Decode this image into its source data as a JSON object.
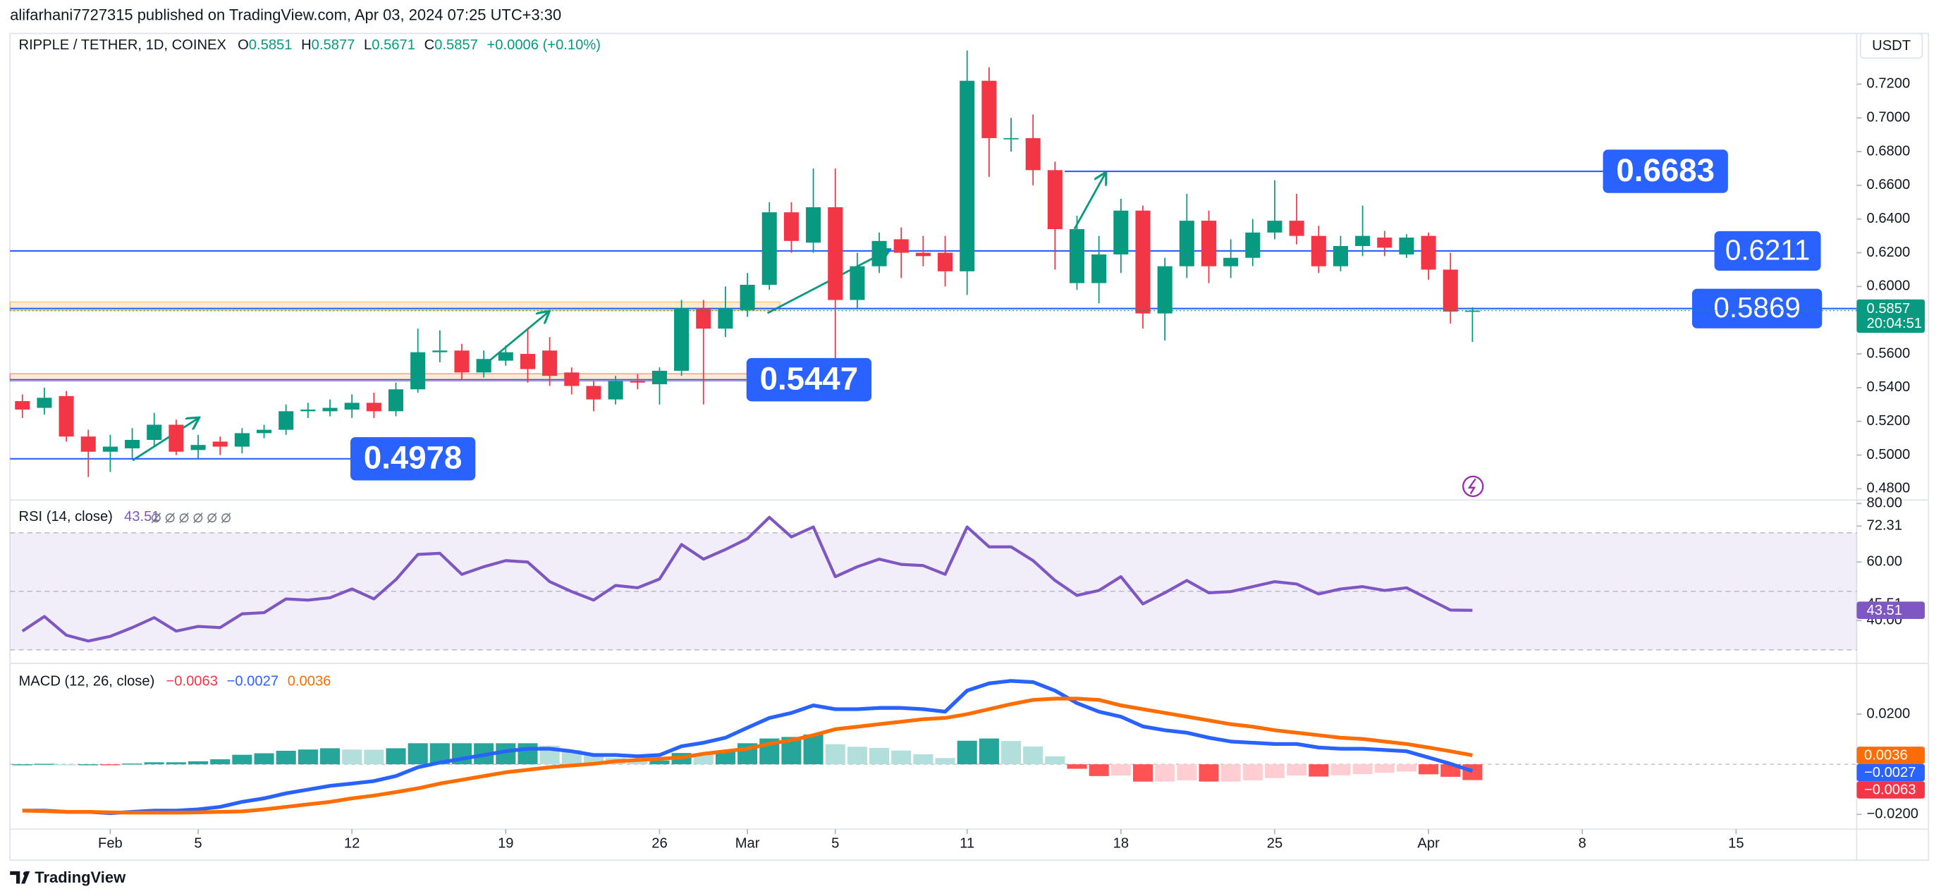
{
  "header": {
    "publisher": "alifarhani7727315 published on TradingView.com, Apr 03, 2024 07:25 UTC+3:30",
    "footer": "TradingView"
  },
  "chart_data": [
    {
      "type": "candlestick",
      "title": "RIPPLE / TETHER, 1D, COINEX",
      "legend_letters": [
        "O",
        "H",
        "L",
        "C"
      ],
      "change": "+0.0006 (+0.10%)",
      "currency": "USDT",
      "countdown": "20:04:51",
      "x": [
        "2024-01-28",
        "2024-01-29",
        "2024-01-30",
        "2024-01-31",
        "2024-02-01",
        "2024-02-02",
        "2024-02-03",
        "2024-02-04",
        "2024-02-05",
        "2024-02-06",
        "2024-02-07",
        "2024-02-08",
        "2024-02-09",
        "2024-02-10",
        "2024-02-11",
        "2024-02-12",
        "2024-02-13",
        "2024-02-14",
        "2024-02-15",
        "2024-02-16",
        "2024-02-17",
        "2024-02-18",
        "2024-02-19",
        "2024-02-20",
        "2024-02-21",
        "2024-02-22",
        "2024-02-23",
        "2024-02-24",
        "2024-02-25",
        "2024-02-26",
        "2024-02-27",
        "2024-02-28",
        "2024-02-29",
        "2024-03-01",
        "2024-03-02",
        "2024-03-03",
        "2024-03-04",
        "2024-03-05",
        "2024-03-06",
        "2024-03-07",
        "2024-03-08",
        "2024-03-09",
        "2024-03-10",
        "2024-03-11",
        "2024-03-12",
        "2024-03-13",
        "2024-03-14",
        "2024-03-15",
        "2024-03-16",
        "2024-03-17",
        "2024-03-18",
        "2024-03-19",
        "2024-03-20",
        "2024-03-21",
        "2024-03-22",
        "2024-03-23",
        "2024-03-24",
        "2024-03-25",
        "2024-03-26",
        "2024-03-27",
        "2024-03-28",
        "2024-03-29",
        "2024-03-30",
        "2024-03-31",
        "2024-04-01",
        "2024-04-02",
        "2024-04-03"
      ],
      "open": [
        0.532,
        0.528,
        0.535,
        0.511,
        0.502,
        0.504,
        0.509,
        0.518,
        0.503,
        0.508,
        0.505,
        0.513,
        0.515,
        0.526,
        0.526,
        0.527,
        0.531,
        0.526,
        0.539,
        0.561,
        0.562,
        0.549,
        0.556,
        0.56,
        0.562,
        0.549,
        0.541,
        0.533,
        0.544,
        0.542,
        0.55,
        0.587,
        0.575,
        0.586,
        0.601,
        0.644,
        0.626,
        0.647,
        0.592,
        0.612,
        0.628,
        0.62,
        0.62,
        0.609,
        0.722,
        0.688,
        0.688,
        0.669,
        0.602,
        0.602,
        0.619,
        0.645,
        0.584,
        0.612,
        0.639,
        0.612,
        0.617,
        0.632,
        0.639,
        0.63,
        0.612,
        0.624,
        0.629,
        0.619,
        0.63,
        0.61,
        0.5851
      ],
      "high": [
        0.536,
        0.54,
        0.538,
        0.515,
        0.512,
        0.516,
        0.525,
        0.521,
        0.512,
        0.511,
        0.516,
        0.518,
        0.53,
        0.531,
        0.533,
        0.536,
        0.537,
        0.543,
        0.575,
        0.574,
        0.566,
        0.562,
        0.565,
        0.575,
        0.57,
        0.552,
        0.544,
        0.547,
        0.548,
        0.552,
        0.592,
        0.592,
        0.6,
        0.608,
        0.65,
        0.65,
        0.67,
        0.67,
        0.62,
        0.632,
        0.635,
        0.63,
        0.63,
        0.74,
        0.73,
        0.7,
        0.702,
        0.674,
        0.642,
        0.63,
        0.652,
        0.648,
        0.617,
        0.655,
        0.645,
        0.628,
        0.64,
        0.663,
        0.655,
        0.636,
        0.63,
        0.648,
        0.633,
        0.631,
        0.632,
        0.62,
        0.5877
      ],
      "low": [
        0.522,
        0.524,
        0.508,
        0.487,
        0.49,
        0.498,
        0.505,
        0.5,
        0.498,
        0.5,
        0.501,
        0.51,
        0.512,
        0.522,
        0.523,
        0.522,
        0.522,
        0.523,
        0.537,
        0.555,
        0.545,
        0.546,
        0.553,
        0.543,
        0.541,
        0.536,
        0.526,
        0.53,
        0.539,
        0.53,
        0.547,
        0.53,
        0.57,
        0.582,
        0.598,
        0.62,
        0.62,
        0.54,
        0.587,
        0.608,
        0.605,
        0.612,
        0.6,
        0.595,
        0.665,
        0.68,
        0.66,
        0.61,
        0.598,
        0.59,
        0.608,
        0.575,
        0.568,
        0.605,
        0.602,
        0.605,
        0.612,
        0.628,
        0.625,
        0.608,
        0.609,
        0.618,
        0.618,
        0.617,
        0.604,
        0.578,
        0.5671
      ],
      "close": [
        0.527,
        0.534,
        0.511,
        0.502,
        0.505,
        0.509,
        0.518,
        0.502,
        0.506,
        0.505,
        0.513,
        0.515,
        0.526,
        0.527,
        0.528,
        0.531,
        0.526,
        0.539,
        0.561,
        0.562,
        0.549,
        0.557,
        0.561,
        0.551,
        0.547,
        0.541,
        0.533,
        0.544,
        0.543,
        0.55,
        0.587,
        0.575,
        0.587,
        0.601,
        0.644,
        0.627,
        0.647,
        0.592,
        0.612,
        0.627,
        0.62,
        0.618,
        0.609,
        0.722,
        0.688,
        0.688,
        0.669,
        0.634,
        0.634,
        0.619,
        0.645,
        0.584,
        0.612,
        0.639,
        0.612,
        0.617,
        0.632,
        0.639,
        0.63,
        0.612,
        0.624,
        0.63,
        0.623,
        0.629,
        0.61,
        0.5851,
        0.5857
      ],
      "up_color": "#089981",
      "down_color": "#f23645",
      "xlim": [
        "2024-01-27T10:29Z",
        "2024-04-20T11:46Z"
      ],
      "xticks": [
        {
          "value": "2024-02-01",
          "label": "Feb"
        },
        {
          "value": "2024-02-05",
          "label": "5"
        },
        {
          "value": "2024-02-12",
          "label": "12"
        },
        {
          "value": "2024-02-19",
          "label": "19"
        },
        {
          "value": "2024-02-26",
          "label": "26"
        },
        {
          "value": "2024-03-01",
          "label": "Mar"
        },
        {
          "value": "2024-03-05",
          "label": "5"
        },
        {
          "value": "2024-03-11",
          "label": "11"
        },
        {
          "value": "2024-03-18",
          "label": "18"
        },
        {
          "value": "2024-03-25",
          "label": "25"
        },
        {
          "value": "2024-04-01",
          "label": "Apr"
        },
        {
          "value": "2024-04-08",
          "label": "8"
        },
        {
          "value": "2024-04-15",
          "label": "15"
        }
      ],
      "ylim": [
        0.4741,
        0.7501
      ],
      "yticks": [
        {
          "value": 0.48,
          "label": "0.4800"
        },
        {
          "value": 0.5,
          "label": "0.5000"
        },
        {
          "value": 0.52,
          "label": "0.5200"
        },
        {
          "value": 0.54,
          "label": "0.5400"
        },
        {
          "value": 0.56,
          "label": "0.5600"
        },
        {
          "value": 0.58,
          "label": "0.5800"
        },
        {
          "value": 0.6,
          "label": "0.6000"
        },
        {
          "value": 0.62,
          "label": "0.6200"
        },
        {
          "value": 0.64,
          "label": "0.6400"
        },
        {
          "value": 0.66,
          "label": "0.6600"
        },
        {
          "value": 0.68,
          "label": "0.6800"
        },
        {
          "value": 0.7,
          "label": "0.7000"
        },
        {
          "value": 0.72,
          "label": "0.7200"
        }
      ],
      "levels": [
        0.4978,
        0.5447,
        0.5869,
        0.6211,
        0.6683
      ],
      "level_color": "#2962ff"
    },
    {
      "type": "line",
      "title": "RSI (14, close)",
      "color": "#7e57c2",
      "values": [
        36.4,
        41.4,
        35,
        33,
        34.6,
        37.6,
        41,
        36.4,
        38,
        37.6,
        42.3,
        42.7,
        47.4,
        47,
        47.8,
        50.8,
        47.4,
        54,
        62.6,
        63,
        55.8,
        58.4,
        60.5,
        60,
        53.3,
        49.9,
        47,
        52,
        51.2,
        54.2,
        66,
        61,
        64.3,
        68,
        75.3,
        68.6,
        72,
        55,
        58.4,
        61,
        59.2,
        58.8,
        55.8,
        72,
        65.2,
        65.2,
        60.5,
        53.7,
        48.6,
        50.3,
        55,
        45.7,
        49.5,
        53.7,
        49.5,
        49.9,
        51.6,
        53.3,
        52.5,
        49.1,
        50.8,
        51.6,
        50.3,
        51.2,
        47.4,
        43.6,
        43.51
      ],
      "ylim": [
        25.8,
        80.8
      ],
      "yticks": [
        {
          "value": 80,
          "label": "80.00"
        },
        72.31,
        {
          "value": 60,
          "label": "60.00"
        },
        45.51,
        {
          "value": 40,
          "label": "40.00"
        }
      ],
      "band": [
        30,
        70
      ],
      "midline": 50
    },
    {
      "type": "macd",
      "title": "MACD (12, 26, close)",
      "ylim": [
        -0.0259,
        0.0398
      ],
      "yticks": [
        {
          "value": 0.02,
          "label": "0.0200"
        },
        {
          "value": -0.02,
          "label": "−0.0200"
        }
      ],
      "histogram": {
        "colors": [
          "#26a69a",
          "#b2dfdb",
          "#ff5252",
          "#ffcdd2"
        ],
        "label_color": "#f23645",
        "last_label": "−0.0063",
        "values": [
          0.0,
          0.0002,
          0.0,
          0.0,
          -0.0003,
          0.0003,
          0.0008,
          0.0008,
          0.0012,
          0.002,
          0.0038,
          0.0044,
          0.0054,
          0.0059,
          0.0064,
          0.0059,
          0.0058,
          0.0064,
          0.0084,
          0.0084,
          0.0084,
          0.0084,
          0.0084,
          0.0084,
          0.0074,
          0.0057,
          0.0035,
          0.0025,
          0.0015,
          0.0015,
          0.0045,
          0.0044,
          0.0054,
          0.0084,
          0.0103,
          0.0109,
          0.0119,
          0.008,
          0.007,
          0.0065,
          0.0055,
          0.004,
          0.0025,
          0.0094,
          0.0103,
          0.0093,
          0.0071,
          0.0032,
          -0.0018,
          -0.0047,
          -0.0045,
          -0.0069,
          -0.0069,
          -0.0064,
          -0.0069,
          -0.0069,
          -0.0064,
          -0.0055,
          -0.0045,
          -0.0049,
          -0.0044,
          -0.0039,
          -0.0034,
          -0.0029,
          -0.004,
          -0.005,
          -0.0063
        ]
      },
      "series": [
        {
          "color": "#2962ff",
          "last_label": "−0.0027",
          "values": [
            -0.0185,
            -0.0185,
            -0.019,
            -0.019,
            -0.0195,
            -0.019,
            -0.0185,
            -0.0185,
            -0.018,
            -0.017,
            -0.015,
            -0.0136,
            -0.0116,
            -0.0101,
            -0.0086,
            -0.0077,
            -0.0067,
            -0.0047,
            -0.0012,
            0.0007,
            0.0022,
            0.0037,
            0.0052,
            0.0062,
            0.0062,
            0.0052,
            0.0037,
            0.0037,
            0.0032,
            0.0037,
            0.0072,
            0.0086,
            0.0106,
            0.0146,
            0.0185,
            0.0205,
            0.0235,
            0.022,
            0.022,
            0.0225,
            0.0225,
            0.022,
            0.021,
            0.0294,
            0.0323,
            0.0333,
            0.0328,
            0.0294,
            0.0244,
            0.021,
            0.019,
            0.0151,
            0.0136,
            0.0126,
            0.0106,
            0.0091,
            0.0086,
            0.0081,
            0.0081,
            0.0067,
            0.0062,
            0.0062,
            0.0057,
            0.0052,
            0.0027,
            0.0002,
            -0.0027
          ]
        },
        {
          "color": "#ff6d00",
          "last_label": "0.0036",
          "values": [
            -0.0185,
            -0.0187,
            -0.019,
            -0.019,
            -0.0192,
            -0.0193,
            -0.0193,
            -0.0193,
            -0.0192,
            -0.019,
            -0.0188,
            -0.018,
            -0.017,
            -0.016,
            -0.015,
            -0.0136,
            -0.0125,
            -0.0111,
            -0.0096,
            -0.0077,
            -0.0062,
            -0.0047,
            -0.0032,
            -0.0022,
            -0.0012,
            -0.0005,
            0.0002,
            0.0012,
            0.0017,
            0.0022,
            0.0027,
            0.0042,
            0.0052,
            0.0062,
            0.0082,
            0.0096,
            0.0116,
            0.014,
            0.015,
            0.016,
            0.017,
            0.018,
            0.0185,
            0.02,
            0.022,
            0.024,
            0.0257,
            0.0262,
            0.0262,
            0.0257,
            0.0235,
            0.022,
            0.0205,
            0.019,
            0.0175,
            0.016,
            0.015,
            0.0136,
            0.0126,
            0.0116,
            0.0106,
            0.0101,
            0.0091,
            0.0081,
            0.0067,
            0.0052,
            0.0036
          ]
        }
      ]
    }
  ]
}
